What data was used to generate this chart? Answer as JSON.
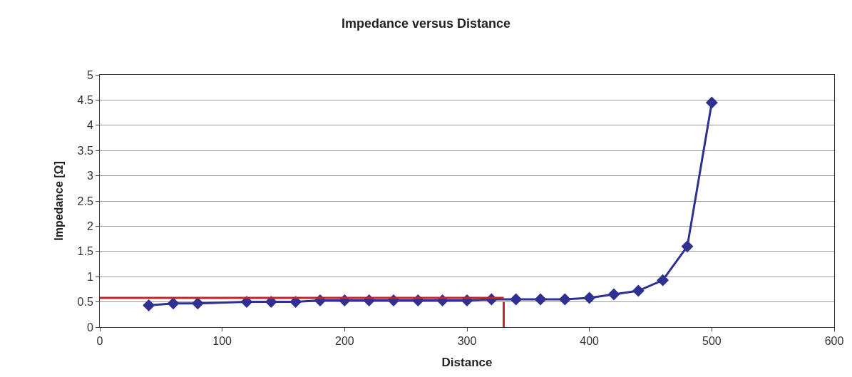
{
  "chart_data": {
    "type": "line",
    "title": "Impedance versus Distance",
    "xlabel": "Distance",
    "ylabel": "Impedance [Ω]",
    "xlim": [
      0,
      600
    ],
    "xticks": [
      0,
      100,
      200,
      300,
      400,
      500,
      600
    ],
    "ylim": [
      0,
      5
    ],
    "yticks": [
      0,
      0.5,
      1,
      1.5,
      2,
      2.5,
      3,
      3.5,
      4,
      4.5,
      5
    ],
    "grid": "y",
    "series": [
      {
        "color": "#2e3192",
        "marker": "diamond",
        "x": [
          40,
          60,
          80,
          120,
          140,
          160,
          180,
          200,
          220,
          240,
          260,
          280,
          300,
          320,
          340,
          360,
          380,
          400,
          420,
          440,
          460,
          480,
          500
        ],
        "values": [
          0.43,
          0.47,
          0.47,
          0.5,
          0.5,
          0.5,
          0.53,
          0.53,
          0.53,
          0.53,
          0.53,
          0.53,
          0.53,
          0.55,
          0.55,
          0.55,
          0.55,
          0.58,
          0.65,
          0.72,
          0.93,
          1.6,
          4.45
        ]
      },
      {
        "color": "#c0272d",
        "marker": "none",
        "x": [
          0,
          330
        ],
        "values": [
          0.58,
          0.58
        ]
      },
      {
        "color": "#c0272d",
        "marker": "none",
        "x": [
          330,
          330
        ],
        "values": [
          0,
          0.5
        ]
      }
    ]
  }
}
